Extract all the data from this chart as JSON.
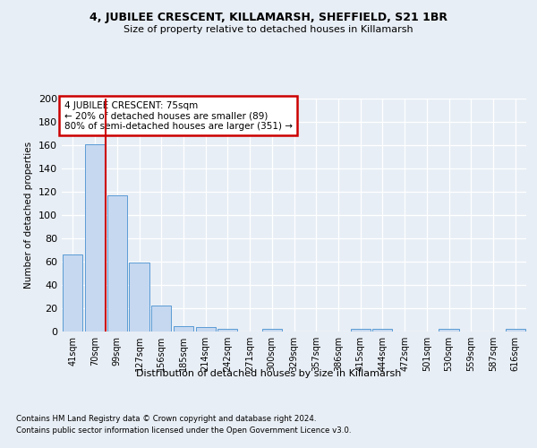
{
  "title": "4, JUBILEE CRESCENT, KILLAMARSH, SHEFFIELD, S21 1BR",
  "subtitle": "Size of property relative to detached houses in Killamarsh",
  "xlabel": "Distribution of detached houses by size in Killamarsh",
  "ylabel": "Number of detached properties",
  "categories": [
    "41sqm",
    "70sqm",
    "99sqm",
    "127sqm",
    "156sqm",
    "185sqm",
    "214sqm",
    "242sqm",
    "271sqm",
    "300sqm",
    "329sqm",
    "357sqm",
    "386sqm",
    "415sqm",
    "444sqm",
    "472sqm",
    "501sqm",
    "530sqm",
    "559sqm",
    "587sqm",
    "616sqm"
  ],
  "values": [
    66,
    161,
    117,
    59,
    22,
    5,
    4,
    2,
    0,
    2,
    0,
    0,
    0,
    2,
    2,
    0,
    0,
    2,
    0,
    0,
    2
  ],
  "bar_color": "#c5d8f0",
  "bar_edge_color": "#5b9bd5",
  "highlight_line_color": "#cc0000",
  "ylim": [
    0,
    200
  ],
  "yticks": [
    0,
    20,
    40,
    60,
    80,
    100,
    120,
    140,
    160,
    180,
    200
  ],
  "annotation_text": "4 JUBILEE CRESCENT: 75sqm\n← 20% of detached houses are smaller (89)\n80% of semi-detached houses are larger (351) →",
  "annotation_box_color": "#ffffff",
  "annotation_box_edge_color": "#cc0000",
  "footer_line1": "Contains HM Land Registry data © Crown copyright and database right 2024.",
  "footer_line2": "Contains public sector information licensed under the Open Government Licence v3.0.",
  "bg_color": "#e8eef5",
  "plot_bg_color": "#e8eef5"
}
